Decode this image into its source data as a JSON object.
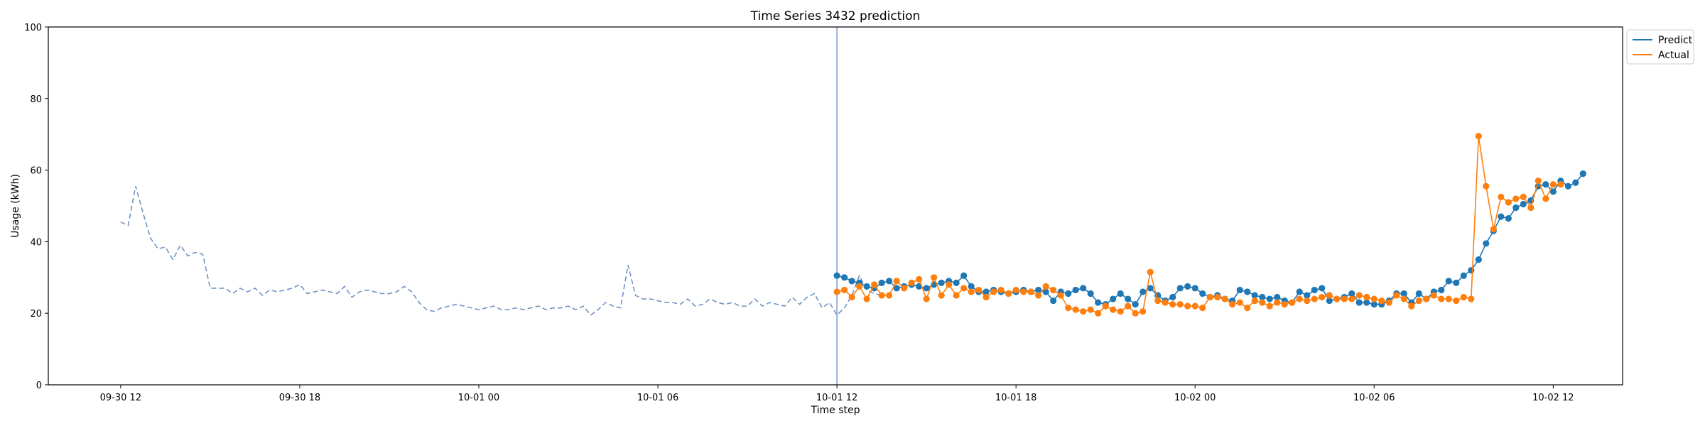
{
  "chart_data": {
    "type": "line",
    "title": "Time Series 3432 prediction",
    "xlabel": "Time step",
    "ylabel": "Usage (kWh)",
    "ylim": [
      0,
      100
    ],
    "yticks": [
      0,
      20,
      40,
      60,
      80,
      100
    ],
    "xticks": [
      {
        "t": 0,
        "label": "09-30 12"
      },
      {
        "t": 24,
        "label": "09-30 18"
      },
      {
        "t": 48,
        "label": "10-01 00"
      },
      {
        "t": 72,
        "label": "10-01 06"
      },
      {
        "t": 96,
        "label": "10-01 12"
      },
      {
        "t": 120,
        "label": "10-01 18"
      },
      {
        "t": 144,
        "label": "10-02 00"
      },
      {
        "t": 168,
        "label": "10-02 06"
      },
      {
        "t": 192,
        "label": "10-02 12"
      }
    ],
    "xlim": [
      -9.7,
      201.3
    ],
    "grid": false,
    "legend_position": "top-right",
    "forecast_start": 96,
    "x_step": "15 min",
    "history": {
      "start_t": 0,
      "color": "#7294c1",
      "values": [
        45.5,
        44.5,
        55.5,
        48,
        41,
        38,
        38.5,
        35,
        39,
        36,
        37,
        36.5,
        27,
        27,
        27,
        25.5,
        27,
        26,
        27,
        25,
        26.5,
        26,
        26.5,
        27,
        28,
        25.5,
        26,
        26.5,
        26,
        25.5,
        27.5,
        24.5,
        26,
        26.5,
        26,
        25.5,
        25.5,
        26,
        27.5,
        26,
        23,
        21,
        20.5,
        21.5,
        22,
        22.5,
        22,
        21.5,
        21,
        21.5,
        22,
        21,
        21,
        21.5,
        21,
        21.5,
        22,
        21,
        21.5,
        21.5,
        22,
        21,
        22,
        19.5,
        21,
        23,
        22,
        21.5,
        33.5,
        25,
        24,
        24,
        23.5,
        23,
        23,
        22.5,
        24,
        22,
        22.5,
        24,
        23,
        22.5,
        23,
        22,
        22,
        24,
        22,
        23,
        22.5,
        22,
        24.5,
        22.5,
        24.5,
        25.5,
        21.5,
        23,
        19.5,
        21.5,
        25,
        30.5,
        26.5,
        25.5,
        25
      ]
    },
    "series": [
      {
        "name": "Predict",
        "color": "#1f77b4",
        "start_t": 96,
        "values": [
          30.5,
          30,
          29,
          28.5,
          27.5,
          27,
          28.5,
          29,
          27,
          27.5,
          28,
          27.5,
          27,
          28,
          28.5,
          29,
          28.5,
          30.5,
          27.5,
          26,
          26,
          26.5,
          26,
          25.5,
          26,
          26.5,
          26,
          26.5,
          26,
          23.5,
          26,
          25.5,
          26.5,
          27,
          25.5,
          23,
          22.5,
          24,
          25.5,
          24,
          22.5,
          26,
          27,
          25,
          23.5,
          24.5,
          27,
          27.5,
          27,
          25.5,
          24.5,
          25,
          24,
          23.5,
          26.5,
          26,
          25,
          24.5,
          24,
          24.5,
          23.5,
          23,
          26,
          25,
          26.5,
          27,
          23.5,
          24,
          24.5,
          25.5,
          23,
          23,
          22.5,
          22.5,
          23.5,
          25.5,
          25.5,
          23,
          25.5,
          24,
          26,
          26.5,
          29,
          28.5,
          30.5,
          32,
          35,
          39.5,
          43,
          47,
          46.5,
          49.5,
          50.5,
          51.5,
          55.5,
          56,
          54,
          57,
          55.5,
          56.5,
          59
        ]
      },
      {
        "name": "Actual",
        "color": "#ff7f0e",
        "start_t": 96,
        "values": [
          26,
          26.5,
          24.5,
          27.5,
          24,
          28,
          25,
          25,
          29,
          27,
          28.5,
          29.5,
          24,
          30,
          25,
          28,
          25,
          27,
          26,
          26.5,
          24.5,
          26,
          26.5,
          25.5,
          26.5,
          26,
          26,
          25,
          27.5,
          26.5,
          25,
          21.5,
          21,
          20.5,
          21,
          20,
          22,
          21,
          20.5,
          22,
          20,
          20.5,
          31.5,
          23.5,
          23,
          22.5,
          22.5,
          22,
          22,
          21.5,
          24.5,
          24.5,
          24,
          22.5,
          23,
          21.5,
          23.5,
          23,
          22,
          23,
          22.5,
          23,
          24,
          23.5,
          24,
          24.5,
          25,
          24,
          24,
          24,
          25,
          24.5,
          24,
          23.5,
          23,
          25,
          24,
          22,
          23.5,
          24,
          25,
          24,
          24,
          23.5,
          24.5,
          24,
          69.5,
          55.5,
          43.5,
          52.5,
          51,
          52,
          52.5,
          49.5,
          57,
          52,
          56,
          56
        ]
      }
    ]
  }
}
